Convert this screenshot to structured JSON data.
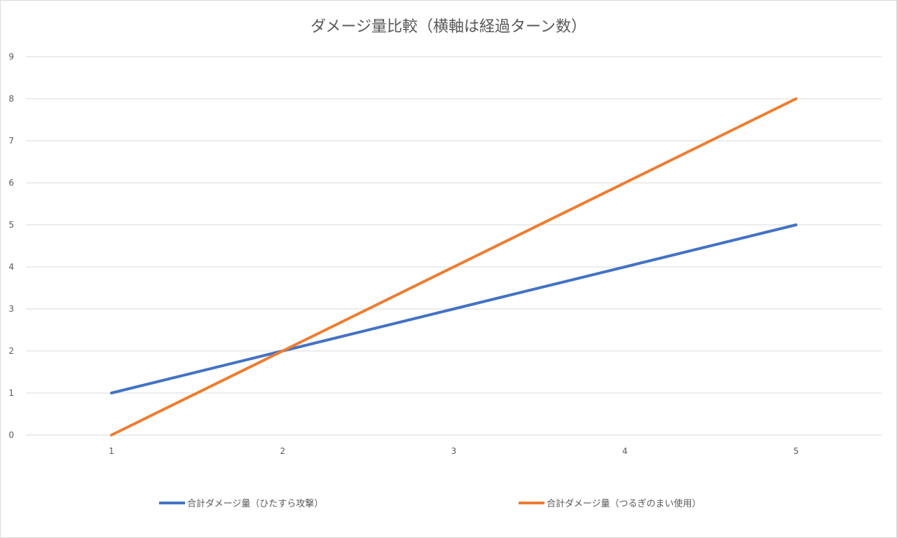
{
  "chart_data": {
    "type": "line",
    "title": "ダメージ量比較（横軸は経過ターン数）",
    "xlabel": "",
    "ylabel": "",
    "categories": [
      "1",
      "2",
      "3",
      "4",
      "5"
    ],
    "ylim": [
      0,
      9
    ],
    "yticks": [
      "0",
      "1",
      "2",
      "3",
      "4",
      "5",
      "6",
      "7",
      "8",
      "9"
    ],
    "grid": true,
    "legend_position": "bottom",
    "series": [
      {
        "name": "合計ダメージ量（ひたすら攻撃）",
        "values": [
          1,
          2,
          3,
          4,
          5
        ],
        "color": "#4472c4"
      },
      {
        "name": "合計ダメージ量（つるぎのまい使用）",
        "values": [
          0,
          2,
          4,
          6,
          8
        ],
        "color": "#ed7d31"
      }
    ]
  }
}
